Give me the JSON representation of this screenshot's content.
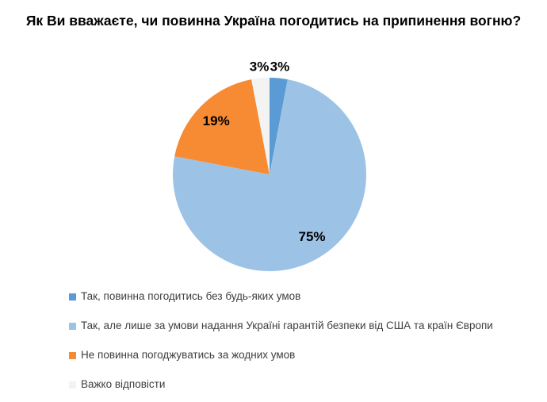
{
  "title": "Як Ви вважаєте, чи повинна Україна погодитись на припинення вогню?",
  "chart_data": {
    "type": "pie",
    "title": "Як Ви вважаєте, чи повинна Україна погодитись на припинення вогню?",
    "direction": "clockwise",
    "start_angle_deg": 0,
    "legend_position": "bottom-left",
    "background_color": "#ffffff",
    "slices": [
      {
        "label": "Так, повинна погодитись без будь-яких умов",
        "value": 3,
        "display": "3%",
        "color": "#5B9BD5",
        "label_placement": "outside"
      },
      {
        "label": "Так, але лише за умови надання Україні гарантій безпеки від США та країн Європи",
        "value": 75,
        "display": "75%",
        "color": "#9CC3E5",
        "label_placement": "inside"
      },
      {
        "label": "Не повинна погоджуватись за жодних умов",
        "value": 19,
        "display": "19%",
        "color": "#F68B33",
        "label_placement": "inside"
      },
      {
        "label": "Важко відповісти",
        "value": 3,
        "display": "3%",
        "color": "#F3F3F1",
        "label_placement": "outside"
      }
    ]
  }
}
